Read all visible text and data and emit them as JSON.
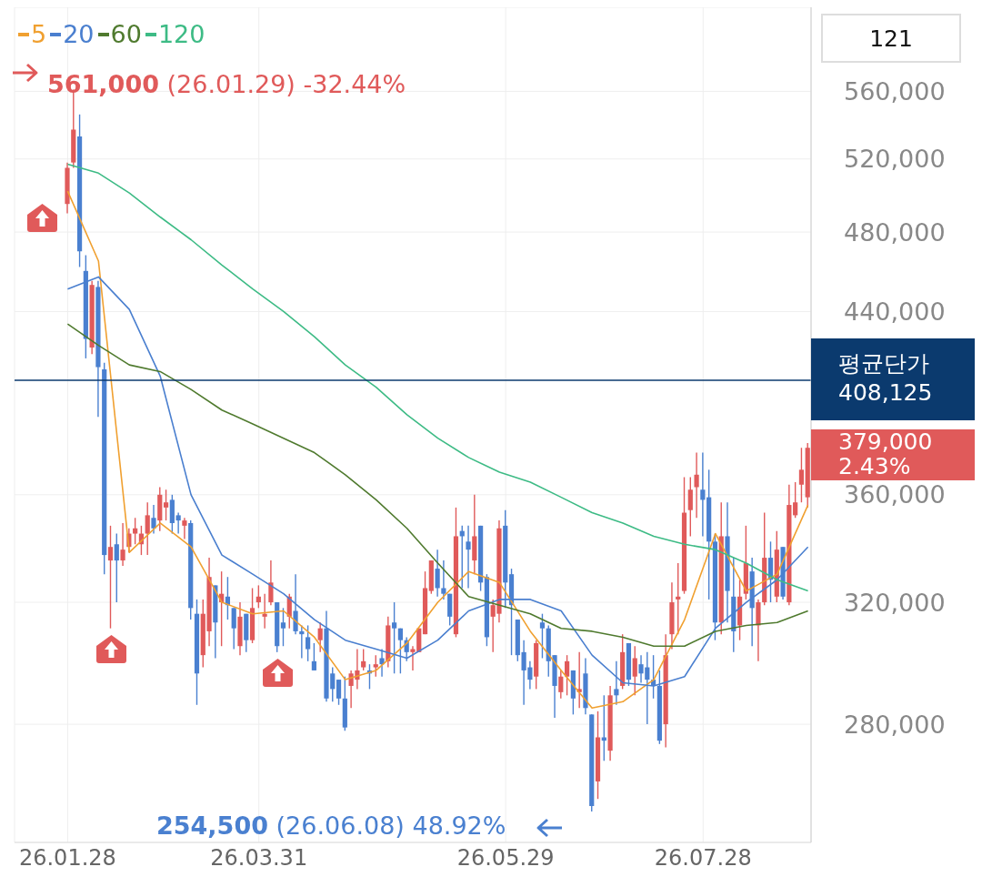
{
  "chart_data": {
    "type": "candlestick",
    "categories": [
      "26.01.28",
      null,
      null,
      null,
      null,
      null,
      null,
      null,
      null,
      null,
      null,
      null,
      null,
      null,
      null,
      null,
      null,
      null,
      null,
      null,
      null,
      null,
      null,
      null,
      null,
      null,
      null,
      null,
      null,
      null,
      null,
      "26.03.31",
      null,
      null,
      null,
      null,
      null,
      null,
      null,
      null,
      null,
      null,
      null,
      null,
      null,
      null,
      null,
      null,
      null,
      null,
      null,
      null,
      null,
      null,
      null,
      null,
      null,
      null,
      null,
      null,
      null,
      null,
      null,
      null,
      null,
      null,
      null,
      null,
      null,
      null,
      null,
      "26.05.29",
      null,
      null,
      null,
      null,
      null,
      null,
      null,
      null,
      null,
      null,
      null,
      null,
      null,
      null,
      null,
      null,
      null,
      null,
      null,
      null,
      null,
      null,
      null,
      null,
      null,
      null,
      null,
      null,
      null,
      null,
      null,
      "26.07.28",
      null,
      null,
      null,
      null,
      null,
      null,
      null,
      null,
      null,
      null,
      null,
      null,
      null,
      null,
      null,
      null,
      null
    ],
    "ohlc": [
      [
        495000,
        518000,
        490000,
        515000
      ],
      [
        518000,
        561000,
        515000,
        537000
      ],
      [
        533000,
        546000,
        462000,
        470000
      ],
      [
        460000,
        468000,
        418000,
        427000
      ],
      [
        423000,
        455000,
        420000,
        453000
      ],
      [
        452000,
        455000,
        392000,
        414000
      ],
      [
        413000,
        416000,
        330000,
        337000
      ],
      [
        335000,
        348000,
        311000,
        340000
      ],
      [
        341000,
        345000,
        320000,
        335000
      ],
      [
        335000,
        349000,
        333000,
        339000
      ],
      [
        340000,
        347000,
        338000,
        345000
      ],
      [
        345000,
        351000,
        341000,
        347000
      ],
      [
        341000,
        348000,
        337000,
        345000
      ],
      [
        345000,
        357000,
        337000,
        352000
      ],
      [
        351000,
        356000,
        345000,
        347000
      ],
      [
        350000,
        363000,
        346000,
        360000
      ],
      [
        355000,
        362000,
        350000,
        357000
      ],
      [
        358000,
        360000,
        345000,
        349000
      ],
      [
        352000,
        353000,
        345000,
        350000
      ],
      [
        348000,
        351000,
        343000,
        350000
      ],
      [
        349000,
        350000,
        314000,
        318000
      ],
      [
        316000,
        321000,
        286000,
        296000
      ],
      [
        302000,
        321000,
        298000,
        316000
      ],
      [
        310000,
        336000,
        305000,
        329000
      ],
      [
        326000,
        326000,
        301000,
        313000
      ],
      [
        320000,
        331000,
        305000,
        323000
      ],
      [
        322000,
        329000,
        314000,
        319000
      ],
      [
        318000,
        318000,
        304000,
        311000
      ],
      [
        305000,
        320000,
        302000,
        315000
      ],
      [
        316000,
        316000,
        303000,
        307000
      ],
      [
        307000,
        325000,
        306000,
        318000
      ],
      [
        320000,
        326000,
        318000,
        322000
      ],
      [
        315000,
        323000,
        311000,
        316000
      ],
      [
        320000,
        335000,
        319000,
        327000
      ],
      [
        320000,
        320000,
        303000,
        305000
      ],
      [
        313000,
        318000,
        305000,
        311000
      ],
      [
        315000,
        323000,
        311000,
        322000
      ],
      [
        317000,
        330000,
        309000,
        310000
      ],
      [
        310000,
        312000,
        301000,
        309000
      ],
      [
        308000,
        312000,
        300000,
        304000
      ],
      [
        300000,
        306000,
        297000,
        297000
      ],
      [
        307000,
        313000,
        303000,
        311000
      ],
      [
        311000,
        317000,
        287000,
        288000
      ],
      [
        296000,
        298000,
        287000,
        291000
      ],
      [
        294000,
        294000,
        286000,
        288000
      ],
      [
        288000,
        295000,
        278000,
        279000
      ],
      [
        292000,
        297000,
        285000,
        296000
      ],
      [
        294000,
        304000,
        291000,
        297000
      ],
      [
        298000,
        304000,
        297000,
        300000
      ],
      [
        297000,
        299000,
        291000,
        296000
      ],
      [
        298000,
        302000,
        295000,
        299000
      ],
      [
        301000,
        304000,
        295000,
        299000
      ],
      [
        300000,
        315000,
        298000,
        312000
      ],
      [
        313000,
        320000,
        296000,
        311000
      ],
      [
        311000,
        311000,
        296000,
        307000
      ],
      [
        307000,
        308000,
        300000,
        303000
      ],
      [
        303000,
        305000,
        297000,
        304000
      ],
      [
        303000,
        311000,
        303000,
        311000
      ],
      [
        309000,
        331000,
        309000,
        325000
      ],
      [
        324000,
        335000,
        323000,
        335000
      ],
      [
        332000,
        339000,
        322000,
        325000
      ],
      [
        325000,
        335000,
        321000,
        323000
      ],
      [
        323000,
        323000,
        312000,
        315000
      ],
      [
        309000,
        355000,
        308000,
        344000
      ],
      [
        346000,
        348000,
        325000,
        344000
      ],
      [
        342000,
        348000,
        325000,
        339000
      ],
      [
        335000,
        360000,
        330000,
        344000
      ],
      [
        348000,
        348000,
        324000,
        327000
      ],
      [
        329000,
        330000,
        305000,
        308000
      ],
      [
        315000,
        321000,
        303000,
        319000
      ],
      [
        316000,
        350000,
        313000,
        347000
      ],
      [
        348000,
        354000,
        318000,
        327000
      ],
      [
        330000,
        332000,
        302000,
        319000
      ],
      [
        314000,
        314000,
        300000,
        302000
      ],
      [
        303000,
        307000,
        286000,
        297000
      ],
      [
        298000,
        300000,
        291000,
        294000
      ],
      [
        295000,
        307000,
        291000,
        306000
      ],
      [
        313000,
        316000,
        301000,
        311000
      ],
      [
        311000,
        312000,
        295000,
        300000
      ],
      [
        302000,
        302000,
        282000,
        292000
      ],
      [
        290000,
        297000,
        288000,
        295000
      ],
      [
        295000,
        302000,
        289000,
        300000
      ],
      [
        297000,
        297000,
        283000,
        288000
      ],
      [
        290000,
        303000,
        285000,
        291000
      ],
      [
        296000,
        301000,
        283000,
        285000
      ],
      [
        283000,
        283000,
        254500,
        256000
      ],
      [
        263000,
        284000,
        258000,
        276000
      ],
      [
        276000,
        289000,
        269000,
        275000
      ],
      [
        272000,
        292000,
        269000,
        289000
      ],
      [
        291000,
        300000,
        286000,
        289000
      ],
      [
        292000,
        309000,
        291000,
        303000
      ],
      [
        306000,
        306000,
        292000,
        294000
      ],
      [
        295000,
        305000,
        289000,
        301000
      ],
      [
        299000,
        302000,
        293000,
        296000
      ],
      [
        298000,
        303000,
        280000,
        294000
      ],
      [
        294000,
        302000,
        288000,
        292000
      ],
      [
        292000,
        297000,
        274000,
        275000
      ],
      [
        280000,
        309000,
        273000,
        302000
      ],
      [
        309000,
        327000,
        304000,
        320000
      ],
      [
        321000,
        334000,
        309000,
        322000
      ],
      [
        324000,
        367000,
        323000,
        353000
      ],
      [
        354000,
        367000,
        344000,
        362000
      ],
      [
        363000,
        377000,
        351000,
        368000
      ],
      [
        362000,
        377000,
        344000,
        358000
      ],
      [
        359000,
        370000,
        321000,
        342000
      ],
      [
        342000,
        345000,
        307000,
        313000
      ],
      [
        313000,
        357000,
        309000,
        344000
      ],
      [
        344000,
        357000,
        313000,
        324000
      ],
      [
        322000,
        336000,
        303000,
        310000
      ],
      [
        312000,
        328000,
        307000,
        322000
      ],
      [
        323000,
        348000,
        321000,
        334000
      ],
      [
        331000,
        336000,
        305000,
        318000
      ],
      [
        312000,
        321000,
        300000,
        320000
      ],
      [
        320000,
        353000,
        319000,
        336000
      ],
      [
        336000,
        342000,
        320000,
        328000
      ],
      [
        322000,
        346000,
        320000,
        339000
      ],
      [
        340000,
        340000,
        321000,
        322000
      ],
      [
        320000,
        364000,
        319000,
        356000
      ],
      [
        352000,
        365000,
        351000,
        357000
      ],
      [
        364000,
        379000,
        357000,
        370000
      ],
      [
        359000,
        381000,
        355000,
        379000
      ]
    ],
    "series": [
      {
        "name": "5",
        "type": "line",
        "color": "#f0a030",
        "values": [
          502000,
          null,
          null,
          null,
          null,
          465000,
          null,
          null,
          null,
          null,
          338000,
          null,
          null,
          null,
          null,
          349000,
          null,
          null,
          null,
          null,
          340000,
          null,
          null,
          null,
          null,
          320000,
          null,
          null,
          null,
          null,
          316000,
          null,
          null,
          null,
          null,
          317000,
          null,
          null,
          null,
          null,
          308000,
          null,
          null,
          null,
          null,
          294000,
          null,
          null,
          null,
          null,
          297000,
          null,
          null,
          null,
          null,
          306000,
          null,
          null,
          null,
          null,
          320000,
          null,
          null,
          null,
          null,
          331000,
          null,
          null,
          null,
          null,
          327000,
          null,
          null,
          null,
          null,
          310000,
          null,
          null,
          null,
          null,
          297000,
          null,
          null,
          null,
          null,
          285000,
          null,
          null,
          null,
          null,
          287000,
          null,
          null,
          null,
          null,
          294000,
          null,
          null,
          null,
          null,
          314000,
          null,
          null,
          null,
          null,
          345000,
          null,
          null,
          null,
          null,
          324000,
          null,
          null,
          null,
          null,
          330000,
          null,
          null,
          null,
          null,
          356000
        ]
      },
      {
        "name": "20",
        "type": "line",
        "color": "#4a7fcf",
        "values": [
          451000,
          null,
          null,
          null,
          null,
          457000,
          null,
          null,
          null,
          null,
          441000,
          null,
          null,
          null,
          null,
          410000,
          null,
          null,
          null,
          null,
          360000,
          null,
          null,
          null,
          null,
          337000,
          null,
          null,
          null,
          null,
          330000,
          null,
          null,
          null,
          null,
          323000,
          null,
          null,
          null,
          null,
          314000,
          null,
          null,
          null,
          null,
          307000,
          null,
          null,
          null,
          null,
          304000,
          null,
          null,
          null,
          null,
          301000,
          null,
          null,
          null,
          null,
          307000,
          null,
          null,
          null,
          null,
          317000,
          null,
          null,
          null,
          null,
          321000,
          null,
          null,
          null,
          null,
          321000,
          null,
          null,
          null,
          null,
          317000,
          null,
          null,
          null,
          null,
          302000,
          null,
          null,
          null,
          null,
          293000,
          null,
          null,
          null,
          null,
          292000,
          null,
          null,
          null,
          null,
          295000,
          null,
          null,
          null,
          null,
          311000,
          null,
          null,
          null,
          null,
          320000,
          null,
          null,
          null,
          null,
          328000,
          null,
          null,
          null,
          null,
          340000
        ]
      },
      {
        "name": "60",
        "type": "line",
        "color": "#4f7a2e",
        "values": [
          434000,
          null,
          null,
          null,
          null,
          424000,
          null,
          null,
          null,
          null,
          415000,
          null,
          null,
          null,
          null,
          412000,
          null,
          null,
          null,
          null,
          404000,
          null,
          null,
          null,
          null,
          395000,
          null,
          null,
          null,
          null,
          389000,
          null,
          null,
          null,
          null,
          383000,
          null,
          null,
          null,
          null,
          377000,
          null,
          null,
          null,
          null,
          368000,
          null,
          null,
          null,
          null,
          358000,
          null,
          null,
          null,
          null,
          347000,
          null,
          null,
          null,
          null,
          334000,
          null,
          null,
          null,
          null,
          322000,
          null,
          null,
          null,
          null,
          319000,
          null,
          null,
          null,
          null,
          316000,
          null,
          null,
          null,
          null,
          311000,
          null,
          null,
          null,
          null,
          310000,
          null,
          null,
          null,
          null,
          308000,
          null,
          null,
          null,
          null,
          305000,
          null,
          null,
          null,
          null,
          305000,
          null,
          null,
          null,
          null,
          310000,
          null,
          null,
          null,
          null,
          312000,
          null,
          null,
          null,
          null,
          313000,
          null,
          null,
          null,
          null,
          317000
        ]
      },
      {
        "name": "120",
        "type": "line",
        "color": "#3dbb85",
        "values": [
          517000,
          null,
          null,
          null,
          null,
          512000,
          null,
          null,
          null,
          null,
          501000,
          null,
          null,
          null,
          null,
          488000,
          null,
          null,
          null,
          null,
          476000,
          null,
          null,
          null,
          null,
          463000,
          null,
          null,
          null,
          null,
          451000,
          null,
          null,
          null,
          null,
          440000,
          null,
          null,
          null,
          null,
          428000,
          null,
          null,
          null,
          null,
          415000,
          null,
          null,
          null,
          null,
          405000,
          null,
          null,
          null,
          null,
          393000,
          null,
          null,
          null,
          null,
          383000,
          null,
          null,
          null,
          null,
          375000,
          null,
          null,
          null,
          null,
          369000,
          null,
          null,
          null,
          null,
          365000,
          null,
          null,
          null,
          null,
          359000,
          null,
          null,
          null,
          null,
          353000,
          null,
          null,
          null,
          null,
          349000,
          null,
          null,
          null,
          null,
          344000,
          null,
          null,
          null,
          null,
          341000,
          null,
          null,
          null,
          null,
          339000,
          null,
          null,
          null,
          null,
          334000,
          null,
          null,
          null,
          null,
          328000,
          null,
          null,
          null,
          null,
          324000
        ]
      }
    ],
    "ylim": [
      246000,
      614000
    ],
    "yticks": [
      {
        "value": 280000,
        "label": "280,000"
      },
      {
        "value": 320000,
        "label": "320,000"
      },
      {
        "value": 360000,
        "label": "360,000"
      },
      {
        "value": 440000,
        "label": "440,000"
      },
      {
        "value": 480000,
        "label": "480,000"
      },
      {
        "value": 520000,
        "label": "520,000"
      },
      {
        "value": 560000,
        "label": "560,000"
      }
    ],
    "log": "y",
    "grid": true,
    "legend": "top left",
    "marker": "none",
    "line_style": "solid",
    "ref_lines": [
      {
        "axis": "y",
        "value": 408125,
        "label": "평균단가\n408,125",
        "color": "#0b3a6e"
      }
    ],
    "annotations": [
      "561,000 (26.01.29) -32.44%",
      "254,500 (26.06.08) 48.92%",
      "379,000\n2.43%",
      "121"
    ]
  }
}
